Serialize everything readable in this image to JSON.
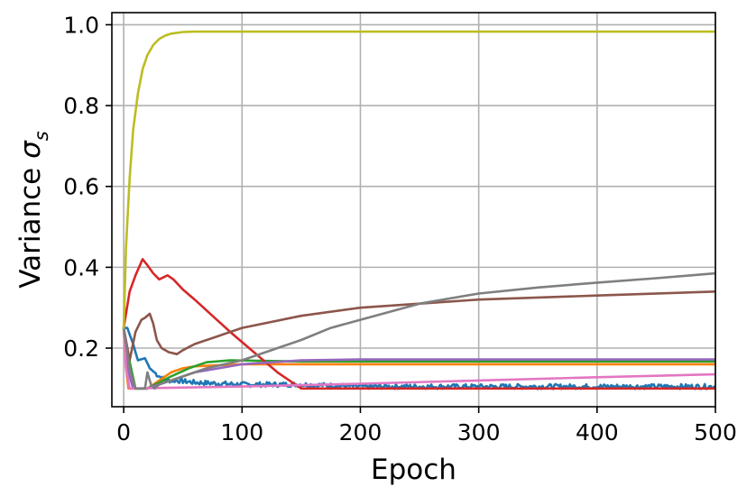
{
  "chart_data": {
    "type": "line",
    "xlabel": "Epoch",
    "ylabel_text": "Variance ",
    "ylabel_symbol": "σ",
    "ylabel_subscript": "s",
    "xlim": [
      -10,
      500
    ],
    "ylim": [
      0.055,
      1.03
    ],
    "x_ticks": [
      0,
      100,
      200,
      300,
      400,
      500
    ],
    "x_tick_labels": [
      "0",
      "100",
      "200",
      "300",
      "400",
      "500"
    ],
    "y_ticks": [
      0.2,
      0.4,
      0.6,
      0.8,
      1.0
    ],
    "y_tick_labels": [
      "0.2",
      "0.4",
      "0.6",
      "0.8",
      "1.0"
    ],
    "grid": true,
    "series": [
      {
        "color": "#1f77b4",
        "noise": 0.006,
        "x": [
          0,
          3,
          8,
          12,
          18,
          22,
          28,
          35,
          45,
          60,
          100,
          150,
          200,
          300,
          400,
          500
        ],
        "y": [
          0.25,
          0.25,
          0.21,
          0.17,
          0.175,
          0.15,
          0.135,
          0.12,
          0.12,
          0.115,
          0.11,
          0.11,
          0.105,
          0.105,
          0.105,
          0.105
        ]
      },
      {
        "color": "#ff7f0e",
        "x": [
          0,
          2,
          4,
          20,
          40,
          50,
          60,
          100,
          500
        ],
        "y": [
          0.25,
          0.15,
          0.1,
          0.1,
          0.14,
          0.15,
          0.155,
          0.16,
          0.16
        ]
      },
      {
        "color": "#2ca02c",
        "x": [
          0,
          4,
          10,
          20,
          30,
          40,
          55,
          70,
          90,
          150,
          500
        ],
        "y": [
          0.25,
          0.18,
          0.1,
          0.1,
          0.115,
          0.13,
          0.15,
          0.165,
          0.17,
          0.167,
          0.167
        ]
      },
      {
        "color": "#d62728",
        "x": [
          0,
          5,
          10,
          16,
          20,
          25,
          30,
          37,
          42,
          50,
          60,
          75,
          90,
          110,
          130,
          150,
          200,
          300,
          400,
          500
        ],
        "y": [
          0.25,
          0.34,
          0.38,
          0.42,
          0.405,
          0.385,
          0.37,
          0.38,
          0.37,
          0.345,
          0.32,
          0.28,
          0.24,
          0.19,
          0.14,
          0.1,
          0.1,
          0.1,
          0.1,
          0.1
        ]
      },
      {
        "color": "#9467bd",
        "x": [
          0,
          3,
          8,
          20,
          40,
          60,
          100,
          150,
          200,
          300,
          500
        ],
        "y": [
          0.25,
          0.15,
          0.1,
          0.1,
          0.12,
          0.14,
          0.16,
          0.17,
          0.172,
          0.172,
          0.172
        ]
      },
      {
        "color": "#8c564b",
        "x": [
          0,
          5,
          10,
          15,
          18,
          22,
          25,
          28,
          32,
          38,
          45,
          50,
          60,
          80,
          100,
          150,
          200,
          300,
          400,
          500
        ],
        "y": [
          0.25,
          0.17,
          0.24,
          0.27,
          0.275,
          0.285,
          0.26,
          0.22,
          0.2,
          0.19,
          0.185,
          0.195,
          0.21,
          0.23,
          0.25,
          0.28,
          0.3,
          0.32,
          0.33,
          0.34
        ]
      },
      {
        "color": "#e377c2",
        "x": [
          0,
          2,
          5,
          100,
          200,
          300,
          400,
          500
        ],
        "y": [
          0.25,
          0.15,
          0.1,
          0.105,
          0.112,
          0.12,
          0.128,
          0.135
        ]
      },
      {
        "color": "#7f7f7f",
        "x": [
          0,
          5,
          10,
          15,
          18,
          20,
          23,
          26,
          30,
          40,
          50,
          70,
          100,
          130,
          150,
          175,
          200,
          250,
          300,
          350,
          400,
          450,
          500
        ],
        "y": [
          0.25,
          0.15,
          0.1,
          0.1,
          0.1,
          0.14,
          0.11,
          0.1,
          0.11,
          0.12,
          0.13,
          0.15,
          0.17,
          0.2,
          0.22,
          0.25,
          0.27,
          0.31,
          0.335,
          0.35,
          0.362,
          0.373,
          0.385
        ]
      },
      {
        "color": "#bcbd22",
        "x": [
          0,
          2,
          5,
          8,
          12,
          16,
          20,
          25,
          30,
          35,
          40,
          50,
          60,
          100,
          200,
          300,
          400,
          500
        ],
        "y": [
          0.25,
          0.45,
          0.62,
          0.74,
          0.83,
          0.89,
          0.925,
          0.95,
          0.965,
          0.973,
          0.978,
          0.982,
          0.983,
          0.983,
          0.983,
          0.983,
          0.983,
          0.983
        ]
      }
    ]
  }
}
